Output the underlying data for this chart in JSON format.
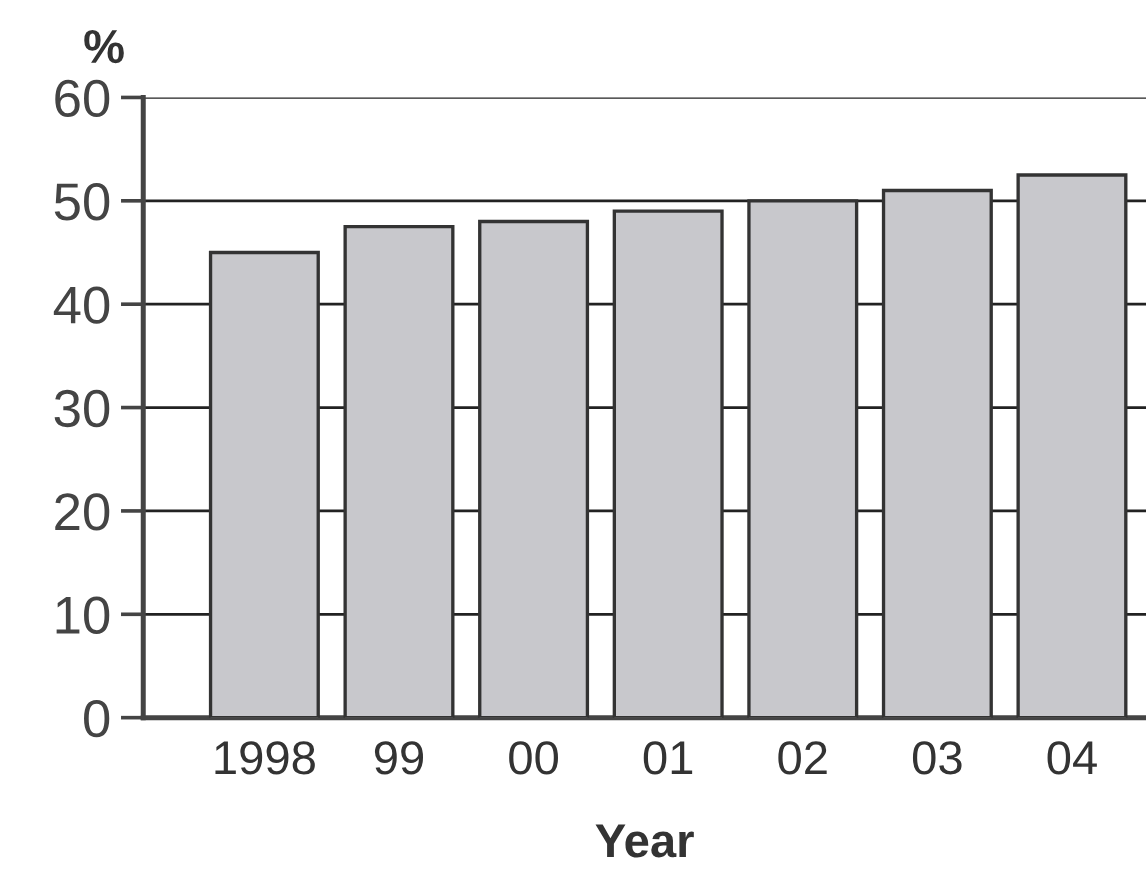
{
  "chart_data": {
    "type": "bar",
    "categories": [
      "1998",
      "99",
      "00",
      "01",
      "02",
      "03",
      "04"
    ],
    "values": [
      45,
      47.5,
      48,
      49,
      50,
      51,
      52.5
    ],
    "color": "#c8c8cc",
    "ylabel": "%",
    "xlabel": "Year",
    "ylim": [
      0,
      60
    ],
    "yticks": [
      0,
      10,
      20,
      30,
      40,
      50,
      60
    ],
    "grid": "y",
    "legend": false
  }
}
